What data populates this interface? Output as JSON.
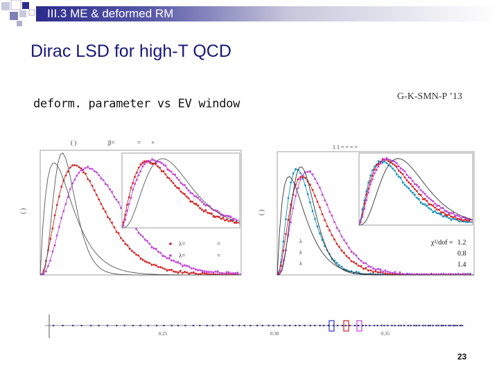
{
  "header": {
    "section_title": "III.3  ME & deformed RM"
  },
  "slide": {
    "title": "Dirac LSD for high-T QCD",
    "subtitle": "deform. parameter vs EV window",
    "citation": "G-K-SMN-P ’13",
    "page_number": "23"
  },
  "left_plot": {
    "panel_label": "( )",
    "beta_label": "β=",
    "eq": "=",
    "times": "×",
    "y_label": "( )",
    "legend_lambda": "λ=",
    "legend_eq": "=",
    "series_colors": [
      "#d42020",
      "#c040d8",
      "#555555"
    ]
  },
  "right_plot": {
    "header_text": "1  1  =  =      =   ×",
    "y_label": "( )",
    "chi_label": "χ²/dof =",
    "chi_values": [
      "1.2",
      "0.8",
      "1.4"
    ],
    "legend_lambda": "λ",
    "series_colors": [
      "#1090c0",
      "#d42020",
      "#c040d8",
      "#333333"
    ]
  },
  "axis_strip": {
    "tick_labels": [
      "0.25",
      "0.30",
      "0.35"
    ],
    "point_color": "#3a3a8a",
    "window_colors": [
      "#2b2bd0",
      "#d02020",
      "#c040d8"
    ]
  }
}
